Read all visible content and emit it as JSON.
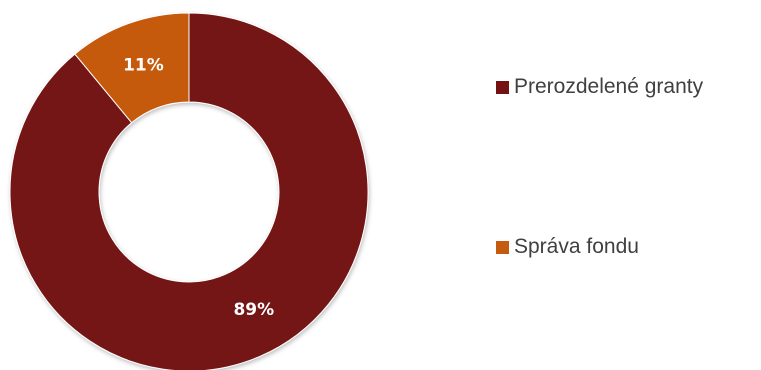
{
  "chart_data": {
    "type": "pie",
    "variant": "donut",
    "categories": [
      "Prerozdelené granty",
      "Správa fondu"
    ],
    "values": [
      89,
      11
    ],
    "data_labels": [
      "89%",
      "11%"
    ],
    "colors": [
      "#741213",
      "#c55a11"
    ],
    "legend_position": "right",
    "title": ""
  }
}
